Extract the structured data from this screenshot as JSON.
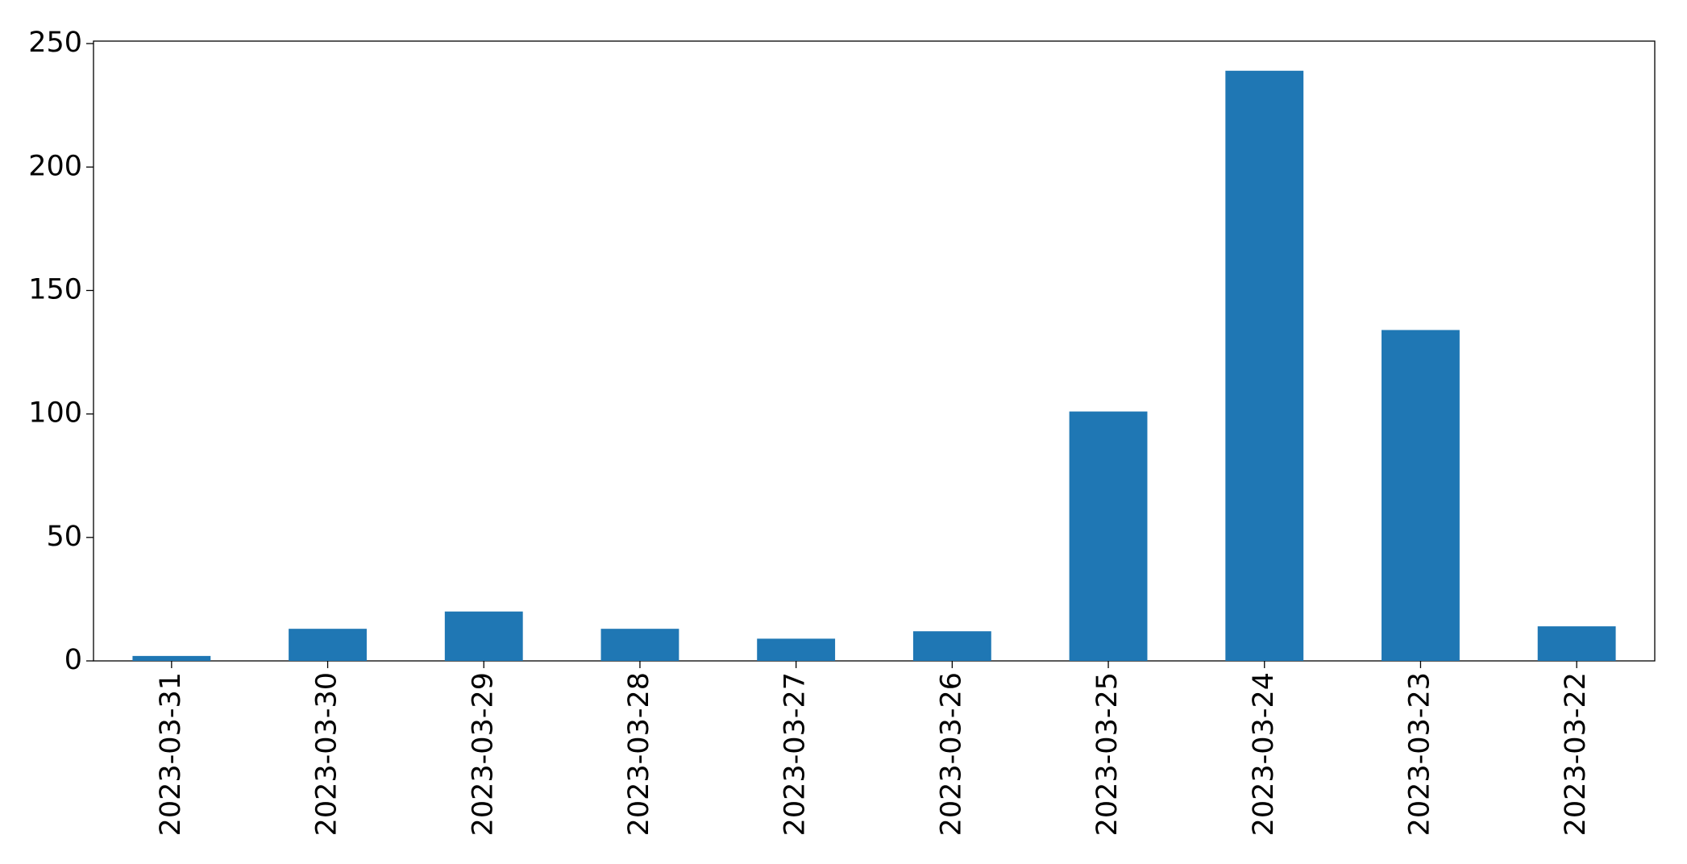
{
  "chart_data": {
    "type": "bar",
    "categories": [
      "2023-03-31",
      "2023-03-30",
      "2023-03-29",
      "2023-03-28",
      "2023-03-27",
      "2023-03-26",
      "2023-03-25",
      "2023-03-24",
      "2023-03-23",
      "2023-03-22"
    ],
    "values": [
      2,
      13,
      20,
      13,
      9,
      12,
      101,
      239,
      134,
      14
    ],
    "color": "#1f77b4",
    "ylim": [
      0,
      251
    ],
    "yticks": [
      0,
      50,
      100,
      150,
      200,
      250
    ],
    "grid": false
  }
}
